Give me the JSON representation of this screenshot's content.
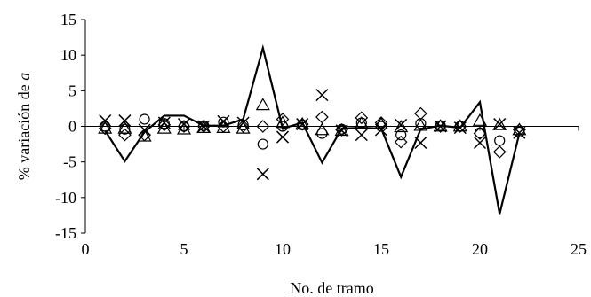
{
  "chart_data": {
    "type": "scatter",
    "title": "",
    "xlabel": "No. de tramo",
    "ylabel_prefix": "% variación de ",
    "ylabel_symbol": "a",
    "xlim": [
      0,
      25
    ],
    "ylim": [
      -15,
      15
    ],
    "xticks": [
      0,
      5,
      10,
      15,
      20,
      25
    ],
    "yticks": [
      15,
      10,
      5,
      0,
      -5,
      -10,
      -15
    ],
    "grid": false,
    "legend": "none",
    "series": [
      {
        "marker": "line",
        "x": [
          1,
          2,
          3,
          4,
          5,
          6,
          7,
          8,
          9,
          10,
          11,
          12,
          13,
          14,
          15,
          16,
          17,
          18,
          19,
          20,
          21,
          22
        ],
        "y": [
          -0.6,
          -4.9,
          -0.8,
          1.5,
          1.5,
          0.1,
          0.1,
          1.0,
          11.0,
          -0.3,
          0.5,
          -5.1,
          -0.3,
          -0.2,
          -0.3,
          -7.1,
          -0.4,
          0.1,
          -0.2,
          3.4,
          -12.3,
          -1.0
        ]
      },
      {
        "marker": "cross",
        "x": [
          1,
          2,
          3,
          4,
          5,
          6,
          7,
          8,
          9,
          10,
          11,
          12,
          13,
          14,
          15,
          16,
          17,
          18,
          19,
          20,
          21,
          22
        ],
        "y": [
          0.8,
          0.8,
          -0.5,
          0.5,
          0.3,
          0.0,
          0.7,
          0.5,
          -6.7,
          -1.5,
          0.3,
          4.4,
          -0.6,
          -1.2,
          -0.5,
          0.2,
          -2.3,
          0.0,
          -0.2,
          -2.3,
          0.3,
          -0.9
        ]
      },
      {
        "marker": "triangle",
        "x": [
          1,
          2,
          3,
          4,
          5,
          6,
          7,
          8,
          9,
          10,
          11,
          12,
          13,
          14,
          15,
          16,
          17,
          18,
          19,
          20,
          21,
          22
        ],
        "y": [
          -0.3,
          -0.3,
          -1.4,
          -0.3,
          -0.4,
          -0.2,
          -0.2,
          -0.3,
          3.0,
          0.5,
          0.3,
          -0.5,
          -0.6,
          0.4,
          0.3,
          -0.1,
          0.1,
          0.0,
          0.0,
          0.8,
          0.2,
          -0.5
        ]
      },
      {
        "marker": "diamond",
        "x": [
          1,
          2,
          3,
          4,
          5,
          6,
          7,
          8,
          9,
          10,
          11,
          12,
          13,
          14,
          15,
          16,
          17,
          18,
          19,
          20,
          21,
          22
        ],
        "y": [
          -0.3,
          -1.2,
          -1.2,
          0.2,
          0.0,
          0.0,
          0.0,
          0.0,
          0.0,
          1.0,
          0.3,
          1.3,
          -0.5,
          1.2,
          0.5,
          -2.2,
          1.8,
          0.0,
          0.0,
          -1.0,
          -3.6,
          -0.5
        ]
      },
      {
        "marker": "circle",
        "x": [
          1,
          2,
          3,
          4,
          5,
          6,
          7,
          8,
          9,
          10,
          11,
          12,
          13,
          14,
          15,
          16,
          17,
          18,
          19,
          20,
          21,
          22
        ],
        "y": [
          0.0,
          -0.4,
          1.0,
          0.4,
          0.0,
          0.1,
          0.6,
          0.2,
          -2.5,
          0.0,
          0.2,
          -1.0,
          -0.4,
          0.5,
          0.0,
          -1.2,
          0.4,
          0.1,
          0.0,
          -0.9,
          -2.0,
          -0.8
        ]
      }
    ]
  }
}
